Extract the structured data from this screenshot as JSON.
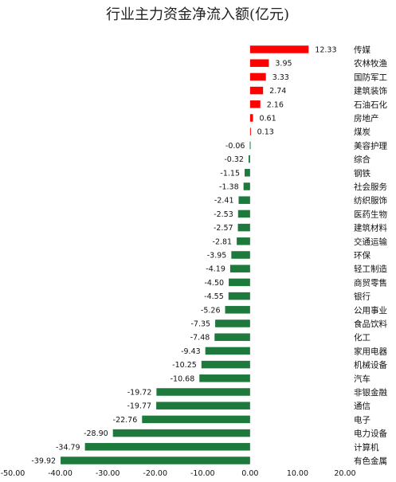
{
  "chart_data": {
    "type": "bar",
    "orientation": "horizontal",
    "title": "行业主力资金净流入额(亿元)",
    "categories": [
      "传媒",
      "农林牧渔",
      "国防军工",
      "建筑装饰",
      "石油石化",
      "房地产",
      "煤炭",
      "美容护理",
      "综合",
      "钢铁",
      "社会服务",
      "纺织服饰",
      "医药生物",
      "建筑材料",
      "交通运输",
      "环保",
      "轻工制造",
      "商贸零售",
      "银行",
      "公用事业",
      "食品饮料",
      "化工",
      "家用电器",
      "机械设备",
      "汽车",
      "非银金融",
      "通信",
      "电子",
      "电力设备",
      "计算机",
      "有色金属"
    ],
    "values": [
      12.33,
      3.95,
      3.33,
      2.74,
      2.16,
      0.61,
      0.13,
      -0.06,
      -0.32,
      -1.15,
      -1.38,
      -2.41,
      -2.53,
      -2.57,
      -2.81,
      -3.95,
      -4.19,
      -4.5,
      -4.55,
      -5.26,
      -7.35,
      -7.48,
      -9.43,
      -10.25,
      -10.68,
      -19.72,
      -19.77,
      -22.76,
      -28.9,
      -34.79,
      -39.92
    ],
    "value_labels": [
      "12.33",
      "3.95",
      "3.33",
      "2.74",
      "2.16",
      "0.61",
      "0.13",
      "-0.06",
      "-0.32",
      "-1.15",
      "-1.38",
      "-2.41",
      "-2.53",
      "-2.57",
      "-2.81",
      "-3.95",
      "-4.19",
      "-4.50",
      "-4.55",
      "-5.26",
      "-7.35",
      "-7.48",
      "-9.43",
      "-10.25",
      "-10.68",
      "-19.72",
      "-19.77",
      "-22.76",
      "-28.90",
      "-34.79",
      "-39.92"
    ],
    "xlim": [
      -50,
      20
    ],
    "xticks": [
      "-50.00",
      "-40.00",
      "-30.00",
      "-20.00",
      "-10.00",
      "0.00",
      "10.00",
      "20.00"
    ],
    "xtick_values": [
      -50,
      -40,
      -30,
      -20,
      -10,
      0,
      10,
      20
    ],
    "colors": {
      "positive": "#ff0000",
      "negative": "#1e7a3c"
    },
    "grid": false,
    "legend": "none"
  }
}
